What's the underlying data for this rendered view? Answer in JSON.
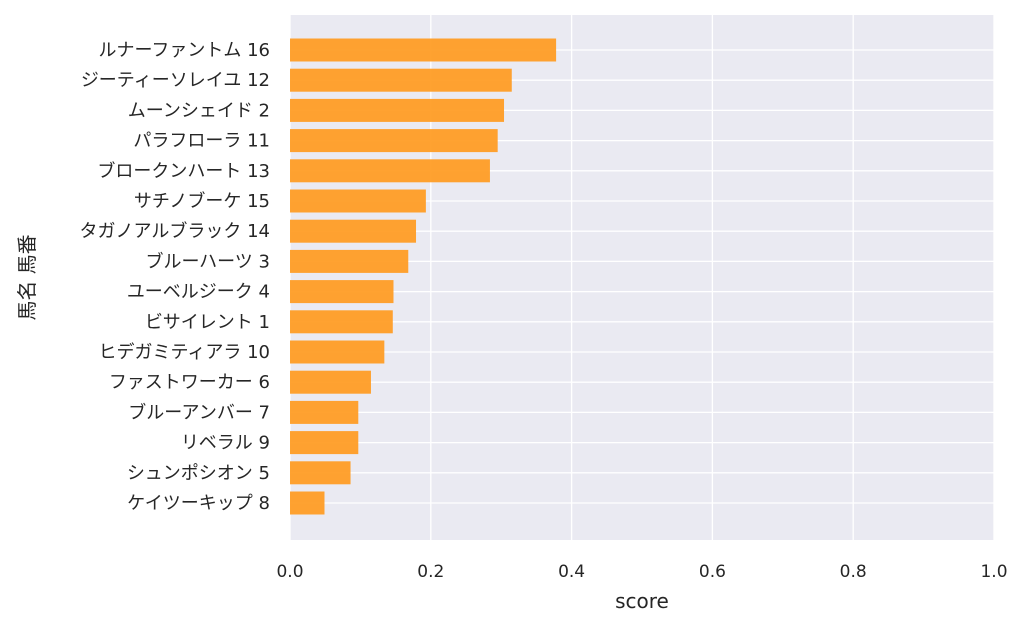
{
  "chart_data": {
    "type": "bar",
    "orientation": "horizontal",
    "categories": [
      "ルナーファントム 16",
      "ジーティーソレイユ 12",
      "ムーンシェイド 2",
      "パラフローラ 11",
      "ブロークンハート 13",
      "サチノブーケ 15",
      "タガノアルブラック 14",
      "ブルーハーツ 3",
      "ユーベルジーク 4",
      "ビサイレント 1",
      "ヒデガミティアラ 10",
      "ファストワーカー 6",
      "ブルーアンバー 7",
      "リベラル 9",
      "シュンポシオン 5",
      "ケイツーキップ 8"
    ],
    "values": [
      0.378,
      0.315,
      0.304,
      0.295,
      0.284,
      0.193,
      0.179,
      0.168,
      0.147,
      0.146,
      0.134,
      0.115,
      0.097,
      0.097,
      0.086,
      0.049
    ],
    "xlabel": "score",
    "ylabel": "馬名 馬番",
    "xlim": [
      0,
      1.0
    ],
    "xticks": [
      "0.0",
      "0.2",
      "0.4",
      "0.6",
      "0.8",
      "1.0"
    ],
    "grid": true,
    "bar_color": "#ff9a1f",
    "background_color": "#eaeaf2"
  }
}
